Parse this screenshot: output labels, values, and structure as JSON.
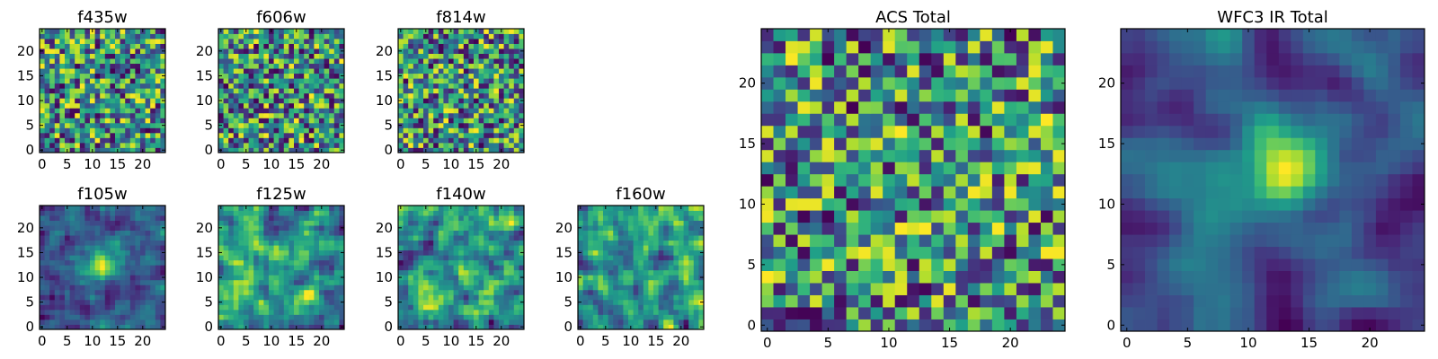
{
  "figure_title": "",
  "chart_data": [
    {
      "type": "heatmap",
      "title": "f435w",
      "colormap": "viridis",
      "grid_size": 25,
      "seed": 11,
      "blur": 0,
      "hotspot": null,
      "xticks": [
        0,
        5,
        10,
        15,
        20
      ],
      "yticks": [
        0,
        5,
        10,
        15,
        20
      ],
      "xlim": [
        -0.5,
        24.5
      ],
      "ylim": [
        -0.5,
        24.5
      ],
      "grid": false,
      "tick_labels_x": [
        "0",
        "5",
        "10",
        "15",
        "20"
      ],
      "tick_labels_y": [
        "0",
        "5",
        "10",
        "15",
        "20"
      ]
    },
    {
      "type": "heatmap",
      "title": "f606w",
      "colormap": "viridis",
      "grid_size": 25,
      "seed": 23,
      "blur": 0,
      "hotspot": null,
      "xticks": [
        0,
        5,
        10,
        15,
        20
      ],
      "yticks": [
        0,
        5,
        10,
        15,
        20
      ],
      "xlim": [
        -0.5,
        24.5
      ],
      "ylim": [
        -0.5,
        24.5
      ],
      "grid": false,
      "tick_labels_x": [
        "0",
        "5",
        "10",
        "15",
        "20"
      ],
      "tick_labels_y": [
        "0",
        "5",
        "10",
        "15",
        "20"
      ]
    },
    {
      "type": "heatmap",
      "title": "f814w",
      "colormap": "viridis",
      "grid_size": 25,
      "seed": 37,
      "blur": 0,
      "hotspot": null,
      "xticks": [
        0,
        5,
        10,
        15,
        20
      ],
      "yticks": [
        0,
        5,
        10,
        15,
        20
      ],
      "xlim": [
        -0.5,
        24.5
      ],
      "ylim": [
        -0.5,
        24.5
      ],
      "grid": false,
      "tick_labels_x": [
        "0",
        "5",
        "10",
        "15",
        "20"
      ],
      "tick_labels_y": [
        "0",
        "5",
        "10",
        "15",
        "20"
      ]
    },
    {
      "type": "heatmap",
      "title": "f105w",
      "colormap": "viridis",
      "grid_size": 25,
      "seed": 41,
      "blur": 1,
      "hotspot": [
        12,
        13
      ],
      "xticks": [
        0,
        5,
        10,
        15,
        20
      ],
      "yticks": [
        0,
        5,
        10,
        15,
        20
      ],
      "xlim": [
        -0.5,
        24.5
      ],
      "ylim": [
        -0.5,
        24.5
      ],
      "grid": false,
      "tick_labels_x": [
        "0",
        "5",
        "10",
        "15",
        "20"
      ],
      "tick_labels_y": [
        "0",
        "5",
        "10",
        "15",
        "20"
      ]
    },
    {
      "type": "heatmap",
      "title": "f125w",
      "colormap": "viridis",
      "grid_size": 25,
      "seed": 53,
      "blur": 1,
      "hotspot": null,
      "xticks": [
        0,
        5,
        10,
        15,
        20
      ],
      "yticks": [
        0,
        5,
        10,
        15,
        20
      ],
      "xlim": [
        -0.5,
        24.5
      ],
      "ylim": [
        -0.5,
        24.5
      ],
      "grid": false,
      "tick_labels_x": [
        "0",
        "5",
        "10",
        "15",
        "20"
      ],
      "tick_labels_y": [
        "0",
        "5",
        "10",
        "15",
        "20"
      ]
    },
    {
      "type": "heatmap",
      "title": "f140w",
      "colormap": "viridis",
      "grid_size": 25,
      "seed": 67,
      "blur": 1,
      "hotspot": null,
      "xticks": [
        0,
        5,
        10,
        15,
        20
      ],
      "yticks": [
        0,
        5,
        10,
        15,
        20
      ],
      "xlim": [
        -0.5,
        24.5
      ],
      "ylim": [
        -0.5,
        24.5
      ],
      "grid": false,
      "tick_labels_x": [
        "0",
        "5",
        "10",
        "15",
        "20"
      ],
      "tick_labels_y": [
        "0",
        "5",
        "10",
        "15",
        "20"
      ]
    },
    {
      "type": "heatmap",
      "title": "f160w",
      "colormap": "viridis",
      "grid_size": 25,
      "seed": 79,
      "blur": 1,
      "hotspot": null,
      "xticks": [
        0,
        5,
        10,
        15,
        20
      ],
      "yticks": [
        0,
        5,
        10,
        15,
        20
      ],
      "xlim": [
        -0.5,
        24.5
      ],
      "ylim": [
        -0.5,
        24.5
      ],
      "grid": false,
      "tick_labels_x": [
        "0",
        "5",
        "10",
        "15",
        "20"
      ],
      "tick_labels_y": [
        "0",
        "5",
        "10",
        "15",
        "20"
      ]
    },
    {
      "type": "heatmap",
      "title": "ACS Total",
      "colormap": "viridis",
      "grid_size": 25,
      "seed": 97,
      "blur": 0,
      "hotspot": null,
      "xticks": [
        0,
        5,
        10,
        15,
        20
      ],
      "yticks": [
        0,
        5,
        10,
        15,
        20
      ],
      "xlim": [
        -0.5,
        24.5
      ],
      "ylim": [
        -0.5,
        24.5
      ],
      "grid": false,
      "tick_labels_x": [
        "0",
        "5",
        "10",
        "15",
        "20"
      ],
      "tick_labels_y": [
        "0",
        "5",
        "10",
        "15",
        "20"
      ]
    },
    {
      "type": "heatmap",
      "title": "WFC3 IR Total",
      "colormap": "viridis",
      "grid_size": 25,
      "seed": 101,
      "blur": 2,
      "hotspot": [
        13,
        13
      ],
      "xticks": [
        0,
        5,
        10,
        15,
        20
      ],
      "yticks": [
        0,
        5,
        10,
        15,
        20
      ],
      "xlim": [
        -0.5,
        24.5
      ],
      "ylim": [
        -0.5,
        24.5
      ],
      "grid": false,
      "tick_labels_x": [
        "0",
        "5",
        "10",
        "15",
        "20"
      ],
      "tick_labels_y": [
        "0",
        "5",
        "10",
        "15",
        "20"
      ]
    }
  ]
}
